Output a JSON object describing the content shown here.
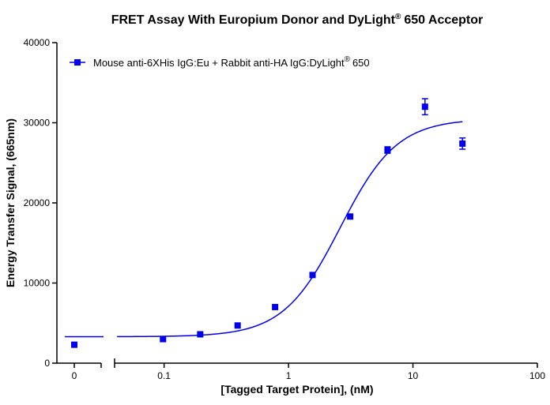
{
  "chart_data": {
    "type": "scatter",
    "title": {
      "main": "FRET Assay With Europium Donor and DyLight",
      "sup": "®",
      "end": "650 Acceptor"
    },
    "xlabel": "[Tagged Target Protein], (nM)",
    "ylabel": "Energy Transfer Signal, (665nm)",
    "xscale": "log10",
    "xlim": [
      0.04,
      100
    ],
    "ylim": [
      0,
      40000
    ],
    "x_ticks": [
      0.1,
      1,
      10,
      100
    ],
    "x_tick_labels": [
      "0.1",
      "1",
      "10",
      "100"
    ],
    "x_zero_tick_label": "0",
    "y_ticks": [
      0,
      10000,
      20000,
      30000,
      40000
    ],
    "y_tick_labels": [
      "0",
      "10000",
      "20000",
      "30000",
      "40000"
    ],
    "legend": {
      "position": "top-left",
      "label_main": "Mouse anti-6XHis IgG:Eu +  Rabbit anti-HA IgG:DyLight",
      "label_sup": "®",
      "label_end": "650"
    },
    "series": [
      {
        "name": "Mouse anti-6XHis IgG:Eu + Rabbit anti-HA IgG:DyLight® 650",
        "color": "#0000ee",
        "marker": "square",
        "points": [
          {
            "x": 0,
            "y": 2300,
            "err": 0
          },
          {
            "x": 0.098,
            "y": 3000,
            "err": 0
          },
          {
            "x": 0.195,
            "y": 3600,
            "err": 0
          },
          {
            "x": 0.39,
            "y": 4700,
            "err": 0
          },
          {
            "x": 0.78,
            "y": 7000,
            "err": 0
          },
          {
            "x": 1.56,
            "y": 11000,
            "err": 0
          },
          {
            "x": 3.13,
            "y": 18300,
            "err": 0
          },
          {
            "x": 6.25,
            "y": 26600,
            "err": 400
          },
          {
            "x": 12.5,
            "y": 32000,
            "err": 1000
          },
          {
            "x": 25,
            "y": 27400,
            "err": 700
          }
        ],
        "fit": {
          "model": "4PL",
          "bottom": 3300,
          "top": 30500,
          "ec50": 2.6,
          "hill": 1.9,
          "x_range": [
            0.04,
            25
          ],
          "zero_baseline": 3300
        }
      }
    ]
  }
}
